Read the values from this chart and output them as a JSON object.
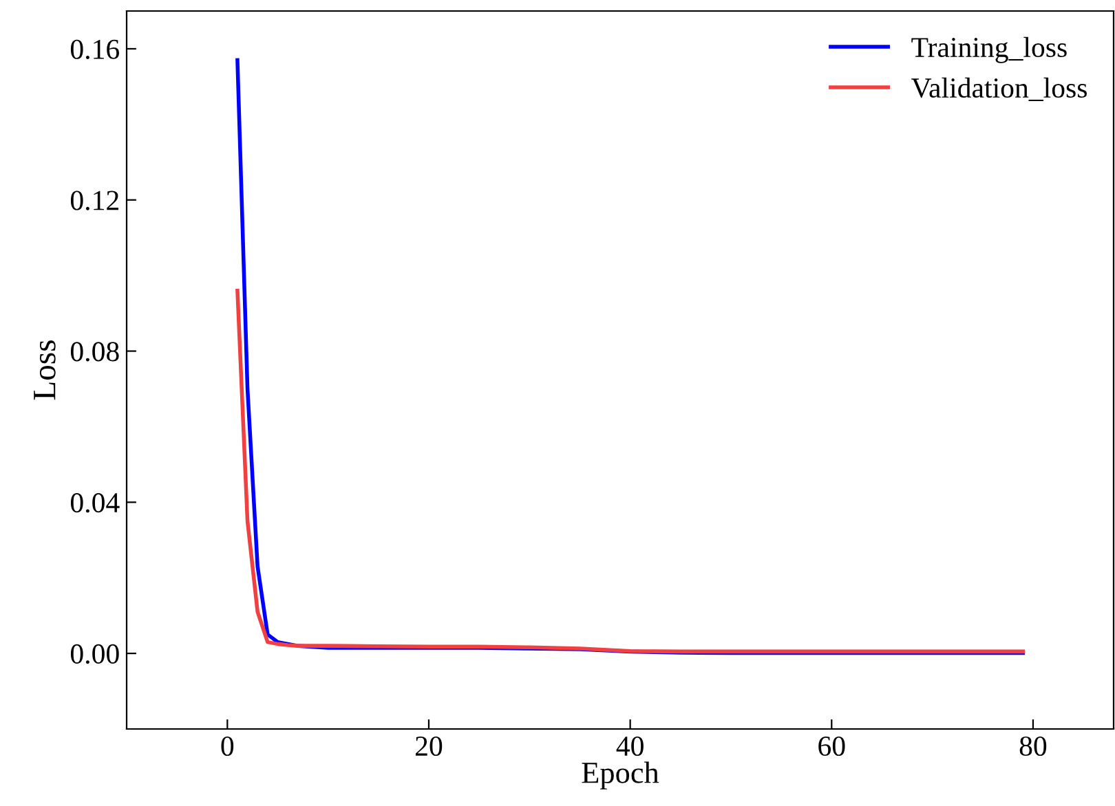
{
  "chart_data": {
    "type": "line",
    "xlabel": "Epoch",
    "ylabel": "Loss",
    "xlim": [
      -10,
      88
    ],
    "xticks": [
      0,
      20,
      40,
      60,
      80
    ],
    "ylim": [
      -0.02,
      0.17
    ],
    "yticks": [
      {
        "value": 0.16,
        "label": "0.16"
      },
      {
        "value": 0.12,
        "label": "0.12"
      },
      {
        "value": 0.08,
        "label": "0.08"
      },
      {
        "value": 0.04,
        "label": "0.04"
      },
      {
        "value": 0,
        "label": "0.00"
      }
    ],
    "grid": false,
    "legend": "top right",
    "marker": "none",
    "line_style": "solid",
    "series": [
      {
        "name": "Training_loss",
        "color": "#0000ff",
        "x": [
          1,
          2,
          3,
          4,
          5,
          6,
          7,
          10,
          15,
          20,
          25,
          30,
          35,
          40,
          45,
          50,
          60,
          70,
          79
        ],
        "values": [
          0.157,
          0.07,
          0.023,
          0.005,
          0.003,
          0.0025,
          0.002,
          0.0015,
          0.0015,
          0.0015,
          0.0015,
          0.0013,
          0.0011,
          0.0005,
          0.0002,
          0.0001,
          0.0001,
          0.0001,
          0.0001
        ]
      },
      {
        "name": "Validation_loss",
        "color": "#f04040",
        "x": [
          1,
          2,
          3,
          4,
          5,
          6,
          7,
          10,
          15,
          20,
          25,
          30,
          35,
          40,
          45,
          50,
          60,
          70,
          79
        ],
        "values": [
          0.096,
          0.035,
          0.011,
          0.003,
          0.0025,
          0.0022,
          0.002,
          0.002,
          0.0019,
          0.0018,
          0.0018,
          0.0016,
          0.0013,
          0.0006,
          0.0005,
          0.0005,
          0.0005,
          0.0005,
          0.0005
        ]
      }
    ]
  }
}
